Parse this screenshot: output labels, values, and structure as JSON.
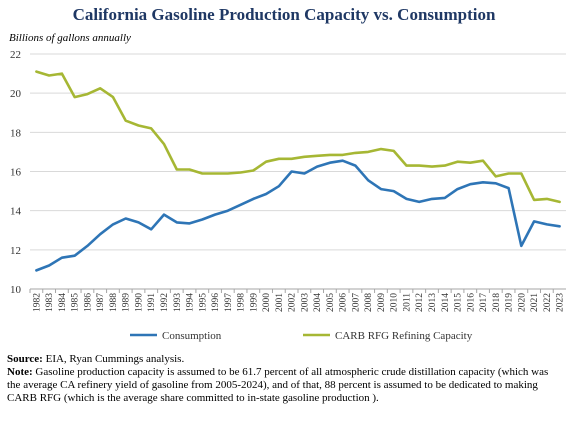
{
  "title": "California Gasoline Production Capacity vs. Consumption",
  "notes": {
    "source_label": "Source:",
    "source_text": " EIA, Ryan Cummings analysis.",
    "note_label": "Note:",
    "note_text": " Gasoline production capacity is assumed to be 61.7 percent of all atmospheric crude distillation capacity (which was the average CA refinery yield of gasoline from 2005-2024), and of that, 88 percent is assumed to be dedicated to making CARB RFG (which is the average share committed to in-state gasoline production )."
  },
  "chart_data": {
    "type": "line",
    "title": "California Gasoline Production Capacity vs. Consumption",
    "ylabel": "Billions of gallons annually",
    "xlabel": "",
    "ylim": [
      10,
      22
    ],
    "yticks": [
      10,
      12,
      14,
      16,
      18,
      20,
      22
    ],
    "grid": "horizontal",
    "legend_position": "bottom",
    "x": [
      "1982",
      "1983",
      "1984",
      "1985",
      "1986",
      "1987",
      "1988",
      "1989",
      "1990",
      "1991",
      "1992",
      "1993",
      "1994",
      "1995",
      "1996",
      "1997",
      "1998",
      "1999",
      "2000",
      "2001",
      "2002",
      "2003",
      "2004",
      "2005",
      "2006",
      "2007",
      "2008",
      "2009",
      "2010",
      "2011",
      "2012",
      "2013",
      "2014",
      "2015",
      "2016",
      "2017",
      "2018",
      "2019",
      "2020",
      "2021",
      "2022",
      "2023"
    ],
    "series": [
      {
        "name": "Consumption",
        "color": "#2e75b6",
        "values": [
          10.95,
          11.2,
          11.6,
          11.7,
          12.2,
          12.8,
          13.3,
          13.6,
          13.4,
          13.05,
          13.8,
          13.4,
          13.35,
          13.55,
          13.8,
          14.0,
          14.3,
          14.6,
          14.85,
          15.25,
          16.0,
          15.9,
          16.25,
          16.45,
          16.55,
          16.3,
          15.55,
          15.1,
          15.0,
          14.6,
          14.45,
          14.6,
          14.65,
          15.1,
          15.35,
          15.45,
          15.4,
          15.15,
          12.2,
          13.45,
          13.3,
          13.2
        ]
      },
      {
        "name": "CARB RFG Refining Capacity",
        "color": "#a6b734",
        "values": [
          21.1,
          20.9,
          21.0,
          19.8,
          19.95,
          20.25,
          19.8,
          18.6,
          18.35,
          18.2,
          17.4,
          16.1,
          16.1,
          15.9,
          15.9,
          15.9,
          15.95,
          16.05,
          16.5,
          16.65,
          16.65,
          16.75,
          16.8,
          16.85,
          16.85,
          16.95,
          17.0,
          17.15,
          17.05,
          16.3,
          16.3,
          16.25,
          16.3,
          16.5,
          16.45,
          16.55,
          15.75,
          15.9,
          15.9,
          14.55,
          14.6,
          14.45
        ]
      }
    ]
  }
}
